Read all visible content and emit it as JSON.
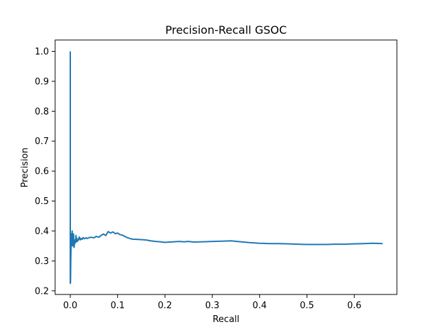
{
  "chart_data": {
    "type": "line",
    "title": "Precision-Recall GSOC",
    "xlabel": "Recall",
    "ylabel": "Precision",
    "xlim": [
      -0.032,
      0.69
    ],
    "ylim": [
      0.188,
      1.038
    ],
    "grid": false,
    "legend": "none",
    "xticks": [
      0.0,
      0.1,
      0.2,
      0.3,
      0.4,
      0.5,
      0.6
    ],
    "xtick_labels": [
      "0.0",
      "0.1",
      "0.2",
      "0.3",
      "0.4",
      "0.5",
      "0.6"
    ],
    "yticks": [
      0.2,
      0.3,
      0.4,
      0.5,
      0.6,
      0.7,
      0.8,
      0.9,
      1.0
    ],
    "ytick_labels": [
      "0.2",
      "0.3",
      "0.4",
      "0.5",
      "0.6",
      "0.7",
      "0.8",
      "0.9",
      "1.0"
    ],
    "series": [
      {
        "color": "#1f77b4",
        "x": [
          0.0,
          0.0,
          0.0005,
          0.001,
          0.0015,
          0.002,
          0.003,
          0.004,
          0.005,
          0.006,
          0.007,
          0.008,
          0.009,
          0.01,
          0.011,
          0.012,
          0.013,
          0.014,
          0.015,
          0.017,
          0.019,
          0.021,
          0.023,
          0.025,
          0.027,
          0.03,
          0.033,
          0.036,
          0.04,
          0.045,
          0.05,
          0.055,
          0.06,
          0.065,
          0.07,
          0.075,
          0.08,
          0.085,
          0.09,
          0.095,
          0.1,
          0.105,
          0.11,
          0.12,
          0.13,
          0.14,
          0.15,
          0.16,
          0.17,
          0.18,
          0.19,
          0.2,
          0.21,
          0.22,
          0.23,
          0.24,
          0.25,
          0.26,
          0.28,
          0.3,
          0.32,
          0.34,
          0.36,
          0.38,
          0.4,
          0.42,
          0.44,
          0.46,
          0.48,
          0.5,
          0.52,
          0.54,
          0.56,
          0.58,
          0.6,
          0.62,
          0.64,
          0.66
        ],
        "y": [
          1.0,
          0.225,
          0.23,
          0.3,
          0.34,
          0.39,
          0.35,
          0.4,
          0.37,
          0.35,
          0.39,
          0.345,
          0.36,
          0.37,
          0.36,
          0.385,
          0.365,
          0.375,
          0.365,
          0.37,
          0.38,
          0.37,
          0.375,
          0.372,
          0.378,
          0.374,
          0.377,
          0.375,
          0.378,
          0.379,
          0.377,
          0.382,
          0.379,
          0.385,
          0.39,
          0.385,
          0.398,
          0.393,
          0.397,
          0.391,
          0.393,
          0.388,
          0.386,
          0.378,
          0.373,
          0.372,
          0.371,
          0.37,
          0.367,
          0.365,
          0.364,
          0.362,
          0.363,
          0.364,
          0.365,
          0.364,
          0.365,
          0.363,
          0.364,
          0.365,
          0.366,
          0.367,
          0.364,
          0.361,
          0.359,
          0.358,
          0.358,
          0.357,
          0.356,
          0.355,
          0.355,
          0.355,
          0.356,
          0.356,
          0.357,
          0.358,
          0.359,
          0.358
        ]
      }
    ]
  }
}
